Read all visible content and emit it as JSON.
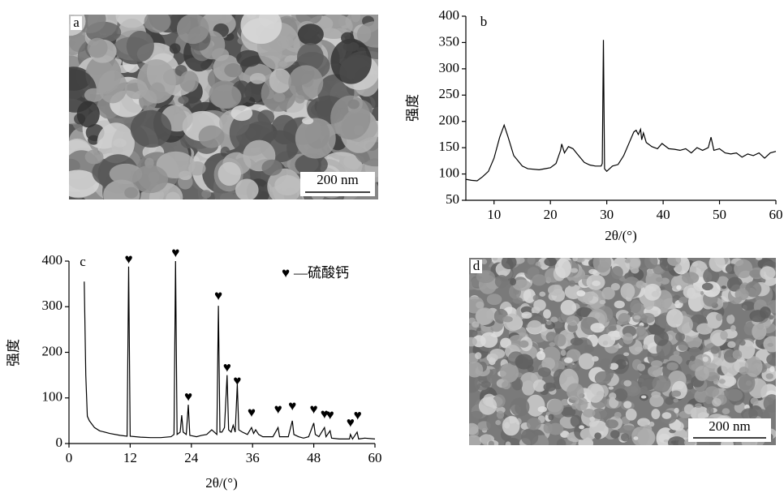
{
  "images": [
    {
      "panel_label": "a",
      "scale_bar": "200 nm"
    },
    {
      "panel_label": "d",
      "scale_bar": "200 nm"
    }
  ],
  "chart_data": [
    {
      "type": "line",
      "panel_label": "b",
      "ylabel": "强度",
      "xlabel": "2θ/(°)",
      "x": [
        5,
        6,
        7,
        8,
        9,
        10,
        11,
        11.8,
        12.5,
        13.5,
        15,
        16,
        18,
        19,
        20,
        21,
        21.8,
        22,
        22.5,
        23.2,
        24,
        25,
        26,
        27,
        28,
        29,
        29.2,
        29.4,
        29.6,
        30,
        31,
        32,
        33,
        34,
        34.8,
        35.2,
        35.6,
        36,
        36.2,
        36.5,
        37,
        38,
        39,
        39.8,
        41,
        42,
        43,
        44,
        45,
        46,
        47,
        48,
        48.5,
        49,
        50,
        51,
        52,
        53,
        54,
        55,
        56,
        57,
        58,
        59,
        60
      ],
      "series": [
        {
          "color": "#000000",
          "values": [
            90,
            88,
            87,
            95,
            105,
            130,
            170,
            193,
            170,
            135,
            115,
            110,
            108,
            110,
            112,
            120,
            145,
            157,
            140,
            152,
            148,
            135,
            122,
            117,
            115,
            115,
            120,
            355,
            110,
            105,
            115,
            118,
            135,
            160,
            180,
            183,
            175,
            185,
            165,
            178,
            160,
            152,
            148,
            158,
            148,
            147,
            145,
            148,
            140,
            150,
            145,
            150,
            170,
            145,
            148,
            140,
            138,
            140,
            132,
            138,
            135,
            140,
            130,
            140,
            143
          ]
        }
      ],
      "xlim": [
        5,
        60
      ],
      "ylim": [
        50,
        400
      ],
      "xticks": [
        10,
        20,
        30,
        40,
        50,
        60
      ],
      "yticks": [
        50,
        100,
        150,
        200,
        250,
        300,
        350,
        400
      ]
    },
    {
      "type": "line",
      "panel_label": "c",
      "ylabel": "强度",
      "xlabel": "2θ/(°)",
      "x": [
        3,
        3.3,
        3.6,
        4,
        5,
        6,
        8,
        10,
        11.4,
        11.7,
        12,
        14,
        16,
        18,
        20,
        20.6,
        20.9,
        21.2,
        21.8,
        22.1,
        22.4,
        23,
        23.4,
        23.7,
        25,
        26,
        27,
        28,
        28.5,
        29,
        29.3,
        29.6,
        30,
        30.5,
        31,
        31.3,
        31.8,
        32.2,
        32.6,
        33,
        33.3,
        34,
        35,
        35.8,
        36.2,
        36.6,
        37.2,
        38,
        40,
        41,
        41.3,
        43,
        43.8,
        44.1,
        45,
        46,
        47,
        48,
        48.3,
        49,
        50.1,
        50.4,
        51.2,
        51.5,
        53,
        55,
        55.2,
        55.6,
        56.5,
        56.8,
        58,
        60
      ],
      "series": [
        {
          "color": "#000000",
          "values": [
            355,
            150,
            60,
            50,
            35,
            28,
            22,
            18,
            16,
            388,
            16,
            14,
            13,
            13,
            15,
            20,
            400,
            20,
            25,
            62,
            25,
            20,
            85,
            18,
            15,
            18,
            20,
            30,
            25,
            20,
            302,
            25,
            25,
            35,
            150,
            30,
            25,
            40,
            25,
            130,
            30,
            25,
            20,
            35,
            22,
            30,
            20,
            15,
            15,
            35,
            15,
            15,
            50,
            20,
            15,
            12,
            15,
            45,
            20,
            15,
            35,
            15,
            28,
            12,
            10,
            10,
            20,
            10,
            25,
            10,
            12,
            10
          ]
        }
      ],
      "xlim": [
        0,
        60
      ],
      "ylim": [
        0,
        400
      ],
      "xticks": [
        0,
        12,
        24,
        36,
        48,
        60
      ],
      "yticks": [
        0,
        100,
        200,
        300,
        400
      ],
      "peak_markers": {
        "symbol": "♥",
        "label": "—硫酸钙",
        "x": [
          11.7,
          20.9,
          23.4,
          29.3,
          31,
          33,
          35.8,
          41,
          43.8,
          48,
          50.1,
          51.2,
          55.2,
          56.6
        ],
        "y": [
          402,
          416,
          100,
          322,
          164,
          135,
          66,
          73,
          80,
          73,
          62,
          60,
          43,
          59
        ]
      }
    }
  ]
}
